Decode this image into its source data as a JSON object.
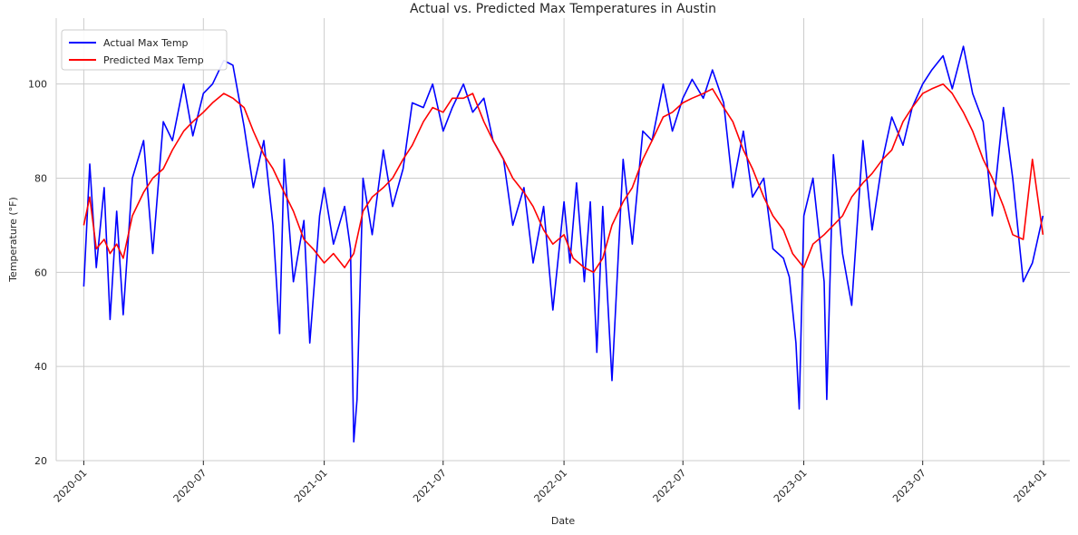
{
  "chart_data": {
    "type": "line",
    "title": "Actual vs. Predicted Max Temperatures in Austin",
    "xlabel": "Date",
    "ylabel": "Temperature (°F)",
    "xlim": [
      "2019-11-20",
      "2024-02-10"
    ],
    "ylim": [
      20,
      114
    ],
    "grid": true,
    "legend_position": "top-left",
    "xticks": [
      {
        "date": "2020-01-01",
        "label": "2020-01"
      },
      {
        "date": "2020-07-01",
        "label": "2020-07"
      },
      {
        "date": "2021-01-01",
        "label": "2021-01"
      },
      {
        "date": "2021-07-01",
        "label": "2021-07"
      },
      {
        "date": "2022-01-01",
        "label": "2022-01"
      },
      {
        "date": "2022-07-01",
        "label": "2022-07"
      },
      {
        "date": "2023-01-01",
        "label": "2023-01"
      },
      {
        "date": "2023-07-01",
        "label": "2023-07"
      },
      {
        "date": "2024-01-01",
        "label": "2024-01"
      }
    ],
    "yticks": [
      20,
      40,
      60,
      80,
      100
    ],
    "series": [
      {
        "name": "Actual Max Temp",
        "color": "#0000ff",
        "x": [
          "2020-01-01",
          "2020-01-10",
          "2020-01-20",
          "2020-02-01",
          "2020-02-10",
          "2020-02-20",
          "2020-03-01",
          "2020-03-15",
          "2020-04-01",
          "2020-04-15",
          "2020-05-01",
          "2020-05-15",
          "2020-06-01",
          "2020-06-15",
          "2020-07-01",
          "2020-07-15",
          "2020-08-01",
          "2020-08-15",
          "2020-09-01",
          "2020-09-15",
          "2020-10-01",
          "2020-10-15",
          "2020-10-25",
          "2020-11-01",
          "2020-11-15",
          "2020-12-01",
          "2020-12-10",
          "2020-12-25",
          "2021-01-01",
          "2021-01-15",
          "2021-02-01",
          "2021-02-10",
          "2021-02-15",
          "2021-02-20",
          "2021-03-01",
          "2021-03-15",
          "2021-04-01",
          "2021-04-15",
          "2021-05-01",
          "2021-05-15",
          "2021-06-01",
          "2021-06-15",
          "2021-07-01",
          "2021-07-15",
          "2021-08-01",
          "2021-08-15",
          "2021-09-01",
          "2021-09-15",
          "2021-10-01",
          "2021-10-15",
          "2021-11-01",
          "2021-11-15",
          "2021-12-01",
          "2021-12-15",
          "2022-01-01",
          "2022-01-10",
          "2022-01-20",
          "2022-02-01",
          "2022-02-10",
          "2022-02-20",
          "2022-03-01",
          "2022-03-15",
          "2022-04-01",
          "2022-04-15",
          "2022-05-01",
          "2022-05-15",
          "2022-06-01",
          "2022-06-15",
          "2022-07-01",
          "2022-07-15",
          "2022-08-01",
          "2022-08-15",
          "2022-09-01",
          "2022-09-15",
          "2022-10-01",
          "2022-10-15",
          "2022-11-01",
          "2022-11-15",
          "2022-12-01",
          "2022-12-10",
          "2022-12-20",
          "2022-12-25",
          "2023-01-01",
          "2023-01-15",
          "2023-02-01",
          "2023-02-05",
          "2023-02-15",
          "2023-03-01",
          "2023-03-15",
          "2023-04-01",
          "2023-04-15",
          "2023-05-01",
          "2023-05-15",
          "2023-06-01",
          "2023-06-15",
          "2023-07-01",
          "2023-07-15",
          "2023-08-01",
          "2023-08-15",
          "2023-09-01",
          "2023-09-15",
          "2023-10-01",
          "2023-10-15",
          "2023-11-01",
          "2023-11-15",
          "2023-12-01",
          "2023-12-15",
          "2023-12-31"
        ],
        "values": [
          57,
          83,
          61,
          78,
          50,
          73,
          51,
          80,
          88,
          64,
          92,
          88,
          100,
          89,
          98,
          100,
          105,
          104,
          91,
          78,
          88,
          70,
          47,
          84,
          58,
          71,
          45,
          72,
          78,
          66,
          74,
          65,
          24,
          33,
          80,
          68,
          86,
          74,
          82,
          96,
          95,
          100,
          90,
          95,
          100,
          94,
          97,
          88,
          84,
          70,
          78,
          62,
          74,
          52,
          75,
          62,
          79,
          58,
          75,
          43,
          74,
          37,
          84,
          66,
          90,
          88,
          100,
          90,
          97,
          101,
          97,
          103,
          96,
          78,
          90,
          76,
          80,
          65,
          63,
          59,
          45,
          31,
          72,
          80,
          58,
          33,
          85,
          64,
          53,
          88,
          69,
          84,
          93,
          87,
          95,
          100,
          103,
          106,
          99,
          108,
          98,
          92,
          72,
          95,
          80,
          58,
          62,
          72
        ]
      },
      {
        "name": "Predicted Max Temp",
        "color": "#ff0000",
        "x": [
          "2020-01-01",
          "2020-01-10",
          "2020-01-20",
          "2020-02-01",
          "2020-02-10",
          "2020-02-20",
          "2020-03-01",
          "2020-03-15",
          "2020-04-01",
          "2020-04-15",
          "2020-05-01",
          "2020-05-15",
          "2020-06-01",
          "2020-06-15",
          "2020-07-01",
          "2020-07-15",
          "2020-08-01",
          "2020-08-15",
          "2020-09-01",
          "2020-09-15",
          "2020-10-01",
          "2020-10-15",
          "2020-11-01",
          "2020-11-15",
          "2020-12-01",
          "2020-12-15",
          "2021-01-01",
          "2021-01-15",
          "2021-02-01",
          "2021-02-15",
          "2021-03-01",
          "2021-03-15",
          "2021-04-01",
          "2021-04-15",
          "2021-05-01",
          "2021-05-15",
          "2021-06-01",
          "2021-06-15",
          "2021-07-01",
          "2021-07-15",
          "2021-08-01",
          "2021-08-15",
          "2021-09-01",
          "2021-09-15",
          "2021-10-01",
          "2021-10-15",
          "2021-11-01",
          "2021-11-15",
          "2021-12-01",
          "2021-12-15",
          "2022-01-01",
          "2022-01-15",
          "2022-02-01",
          "2022-02-15",
          "2022-03-01",
          "2022-03-15",
          "2022-04-01",
          "2022-04-15",
          "2022-05-01",
          "2022-05-15",
          "2022-06-01",
          "2022-06-15",
          "2022-07-01",
          "2022-07-15",
          "2022-08-01",
          "2022-08-15",
          "2022-09-01",
          "2022-09-15",
          "2022-10-01",
          "2022-10-15",
          "2022-11-01",
          "2022-11-15",
          "2022-12-01",
          "2022-12-15",
          "2023-01-01",
          "2023-01-15",
          "2023-02-01",
          "2023-02-15",
          "2023-03-01",
          "2023-03-15",
          "2023-04-01",
          "2023-04-15",
          "2023-05-01",
          "2023-05-15",
          "2023-06-01",
          "2023-06-15",
          "2023-07-01",
          "2023-07-15",
          "2023-08-01",
          "2023-08-15",
          "2023-09-01",
          "2023-09-15",
          "2023-10-01",
          "2023-10-15",
          "2023-11-01",
          "2023-11-15",
          "2023-12-01",
          "2023-12-15",
          "2023-12-31"
        ],
        "values": [
          70,
          76,
          65,
          67,
          64,
          66,
          63,
          72,
          77,
          80,
          82,
          86,
          90,
          92,
          94,
          96,
          98,
          97,
          95,
          90,
          85,
          82,
          77,
          73,
          67,
          65,
          62,
          64,
          61,
          64,
          73,
          76,
          78,
          80,
          84,
          87,
          92,
          95,
          94,
          97,
          97,
          98,
          92,
          88,
          84,
          80,
          77,
          74,
          69,
          66,
          68,
          63,
          61,
          60,
          63,
          70,
          75,
          78,
          84,
          88,
          93,
          94,
          96,
          97,
          98,
          99,
          95,
          92,
          86,
          82,
          76,
          72,
          69,
          64,
          61,
          66,
          68,
          70,
          72,
          76,
          79,
          81,
          84,
          86,
          92,
          95,
          98,
          99,
          100,
          98,
          94,
          90,
          84,
          80,
          74,
          68,
          67,
          84,
          68
        ]
      }
    ]
  }
}
